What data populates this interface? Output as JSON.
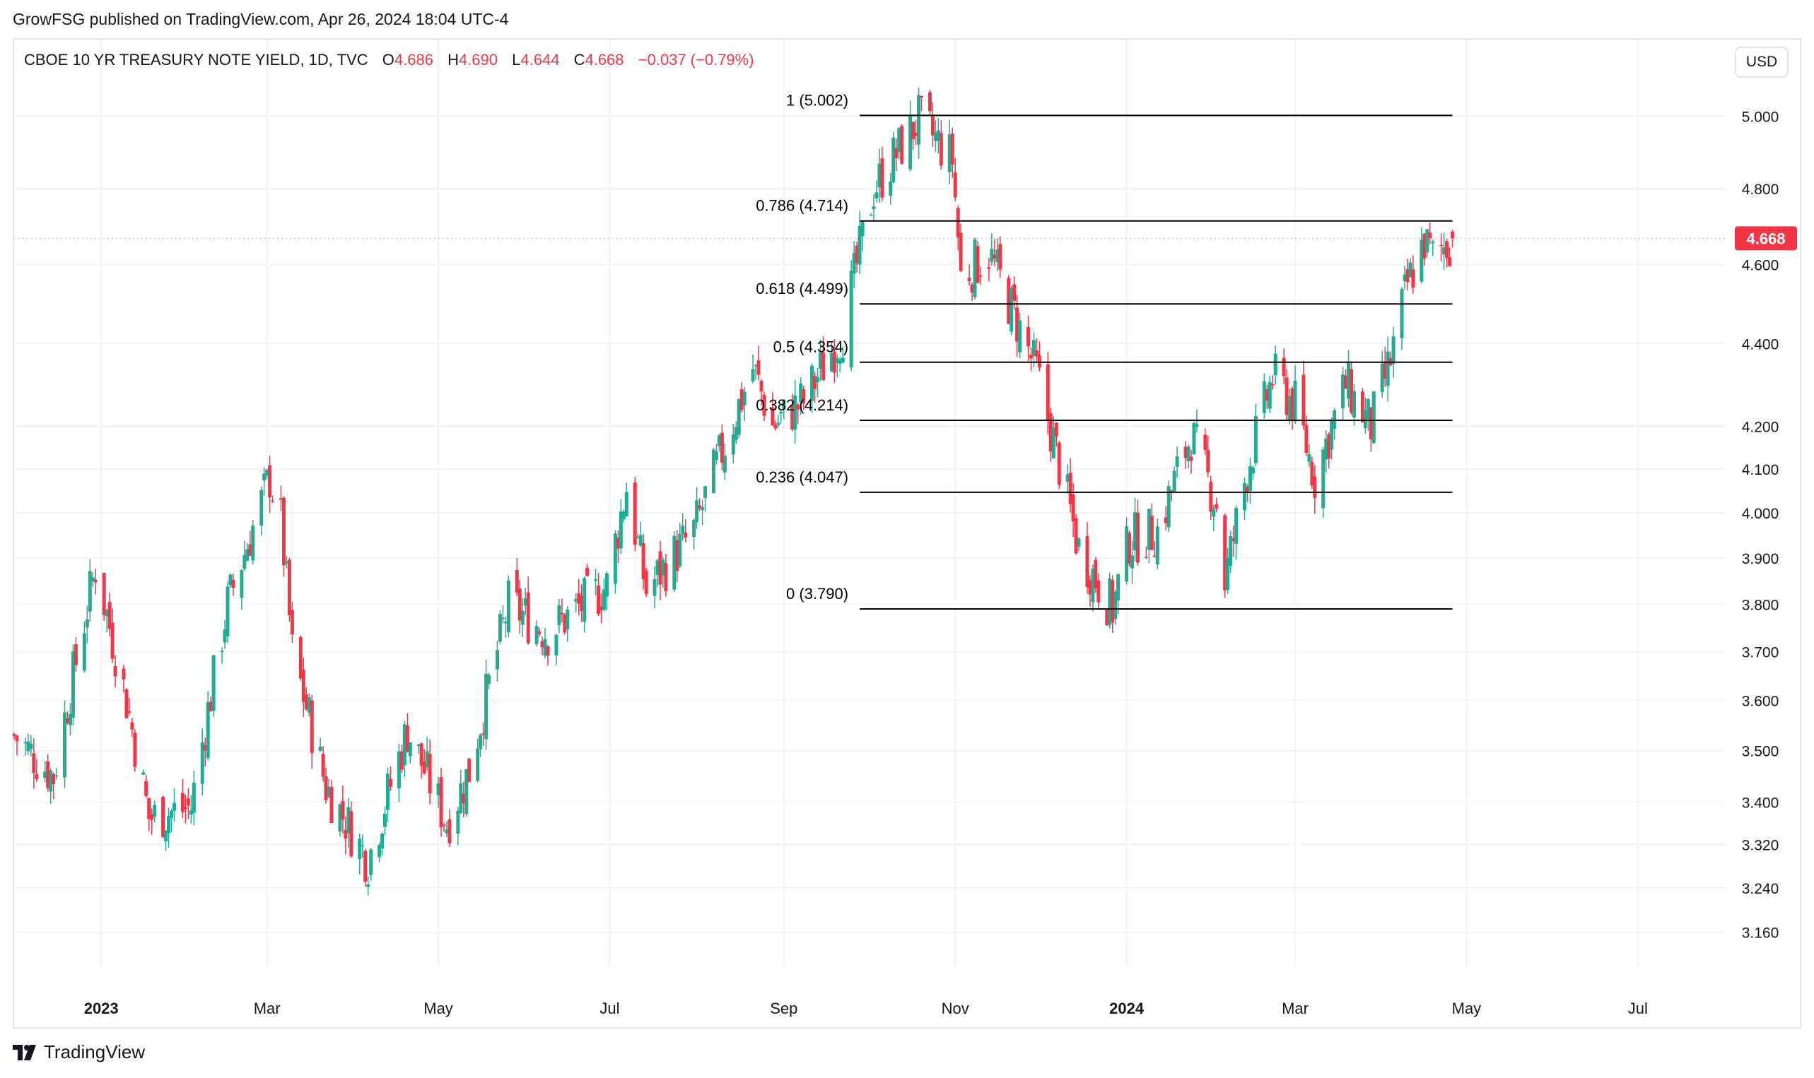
{
  "header": {
    "published": "GrowFSG published on TradingView.com, Apr 26, 2024 18:04 UTC-4"
  },
  "legend": {
    "symbol": "CBOE 10 YR TREASURY NOTE YIELD, 1D, TVC",
    "o_label": "O",
    "o_value": "4.686",
    "h_label": "H",
    "h_value": "4.690",
    "l_label": "L",
    "l_value": "4.644",
    "c_label": "C",
    "c_value": "4.668",
    "change": "−0.037 (−0.79%)"
  },
  "currency_button": "USD",
  "footer": {
    "brand": "TradingView"
  },
  "colors": {
    "up": "#22ab94",
    "down": "#f23645",
    "grid": "#f0f3fa",
    "text": "#131722",
    "last_price_bg": "#f23645"
  },
  "chart_data": {
    "type": "candlestick",
    "scale": "log",
    "ylim": [
      3.1,
      5.22
    ],
    "y_ticks": [
      "5.000",
      "4.800",
      "4.600",
      "4.400",
      "4.200",
      "4.100",
      "4.000",
      "3.900",
      "3.800",
      "3.700",
      "3.600",
      "3.500",
      "3.400",
      "3.320",
      "3.240",
      "3.160"
    ],
    "x_ticks": [
      "2023",
      "Mar",
      "May",
      "Jul",
      "Sep",
      "Nov",
      "2024",
      "Mar",
      "May",
      "Jul"
    ],
    "last_price": "4.668",
    "fibonacci": [
      {
        "label": "1 (5.002)",
        "value": 5.002
      },
      {
        "label": "0.786 (4.714)",
        "value": 4.714
      },
      {
        "label": "0.618 (4.499)",
        "value": 4.499
      },
      {
        "label": "0.5 (4.354)",
        "value": 4.354
      },
      {
        "label": "0.382 (4.214)",
        "value": 4.214
      },
      {
        "label": "0.236 (4.047)",
        "value": 4.047
      },
      {
        "label": "0 (3.790)",
        "value": 3.79
      }
    ],
    "series": [
      {
        "date": "2022-12-01",
        "close": 3.53
      },
      {
        "date": "2022-12-15",
        "close": 3.45
      },
      {
        "date": "2022-12-30",
        "close": 3.88
      },
      {
        "date": "2023-01-10",
        "close": 3.6
      },
      {
        "date": "2023-01-18",
        "close": 3.37
      },
      {
        "date": "2023-02-02",
        "close": 3.39
      },
      {
        "date": "2023-02-15",
        "close": 3.8
      },
      {
        "date": "2023-03-02",
        "close": 4.08
      },
      {
        "date": "2023-03-06",
        "close": 3.98
      },
      {
        "date": "2023-03-10",
        "close": 3.7
      },
      {
        "date": "2023-03-22",
        "close": 3.43
      },
      {
        "date": "2023-04-06",
        "close": 3.29
      },
      {
        "date": "2023-04-20",
        "close": 3.54
      },
      {
        "date": "2023-05-04",
        "close": 3.36
      },
      {
        "date": "2023-05-12",
        "close": 3.46
      },
      {
        "date": "2023-05-26",
        "close": 3.8
      },
      {
        "date": "2023-06-09",
        "close": 3.74
      },
      {
        "date": "2023-06-30",
        "close": 3.84
      },
      {
        "date": "2023-07-07",
        "close": 4.06
      },
      {
        "date": "2023-07-14",
        "close": 3.83
      },
      {
        "date": "2023-07-31",
        "close": 3.96
      },
      {
        "date": "2023-08-21",
        "close": 4.34
      },
      {
        "date": "2023-08-28",
        "close": 4.2
      },
      {
        "date": "2023-09-08",
        "close": 4.26
      },
      {
        "date": "2023-09-22",
        "close": 4.43
      },
      {
        "date": "2023-10-03",
        "close": 4.8
      },
      {
        "date": "2023-10-19",
        "close": 4.99
      },
      {
        "date": "2023-10-31",
        "close": 4.88
      },
      {
        "date": "2023-11-03",
        "close": 4.57
      },
      {
        "date": "2023-11-13",
        "close": 4.63
      },
      {
        "date": "2023-11-30",
        "close": 4.33
      },
      {
        "date": "2023-12-15",
        "close": 3.92
      },
      {
        "date": "2023-12-27",
        "close": 3.79
      },
      {
        "date": "2024-01-02",
        "close": 3.94
      },
      {
        "date": "2024-01-12",
        "close": 3.96
      },
      {
        "date": "2024-01-24",
        "close": 4.18
      },
      {
        "date": "2024-02-02",
        "close": 4.02
      },
      {
        "date": "2024-02-05",
        "close": 3.85
      },
      {
        "date": "2024-02-13",
        "close": 4.1
      },
      {
        "date": "2024-02-22",
        "close": 4.32
      },
      {
        "date": "2024-03-01",
        "close": 4.25
      },
      {
        "date": "2024-03-08",
        "close": 4.08
      },
      {
        "date": "2024-03-19",
        "close": 4.3
      },
      {
        "date": "2024-03-28",
        "close": 4.2
      },
      {
        "date": "2024-04-04",
        "close": 4.36
      },
      {
        "date": "2024-04-10",
        "close": 4.55
      },
      {
        "date": "2024-04-16",
        "close": 4.66
      },
      {
        "date": "2024-04-19",
        "close": 4.62
      },
      {
        "date": "2024-04-26",
        "close": 4.668
      }
    ]
  }
}
